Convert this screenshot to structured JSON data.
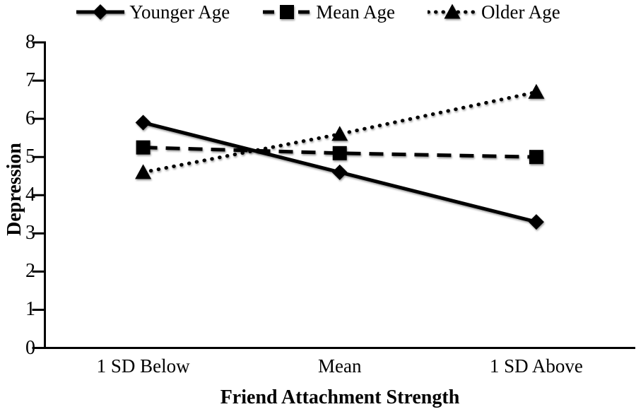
{
  "chart_data": {
    "type": "line",
    "xlabel": "Friend Attachment Strength",
    "ylabel": "Depression",
    "categories": [
      "1 SD Below",
      "Mean",
      "1 SD Above"
    ],
    "yticks": [
      0,
      1,
      2,
      3,
      4,
      5,
      6,
      7,
      8
    ],
    "ylim": [
      0,
      8
    ],
    "grid": false,
    "legend_position": "top",
    "series": [
      {
        "name": "Younger Age",
        "line_style": "solid",
        "marker": "diamond",
        "values": [
          5.9,
          4.6,
          3.3
        ]
      },
      {
        "name": "Mean Age",
        "line_style": "dashed",
        "marker": "square",
        "values": [
          5.25,
          5.1,
          5.0
        ]
      },
      {
        "name": "Older Age",
        "line_style": "dotted",
        "marker": "triangle",
        "values": [
          4.6,
          5.6,
          6.7
        ]
      }
    ],
    "colors": {
      "series": "#000000",
      "text": "#000000",
      "background": "#ffffff"
    }
  }
}
